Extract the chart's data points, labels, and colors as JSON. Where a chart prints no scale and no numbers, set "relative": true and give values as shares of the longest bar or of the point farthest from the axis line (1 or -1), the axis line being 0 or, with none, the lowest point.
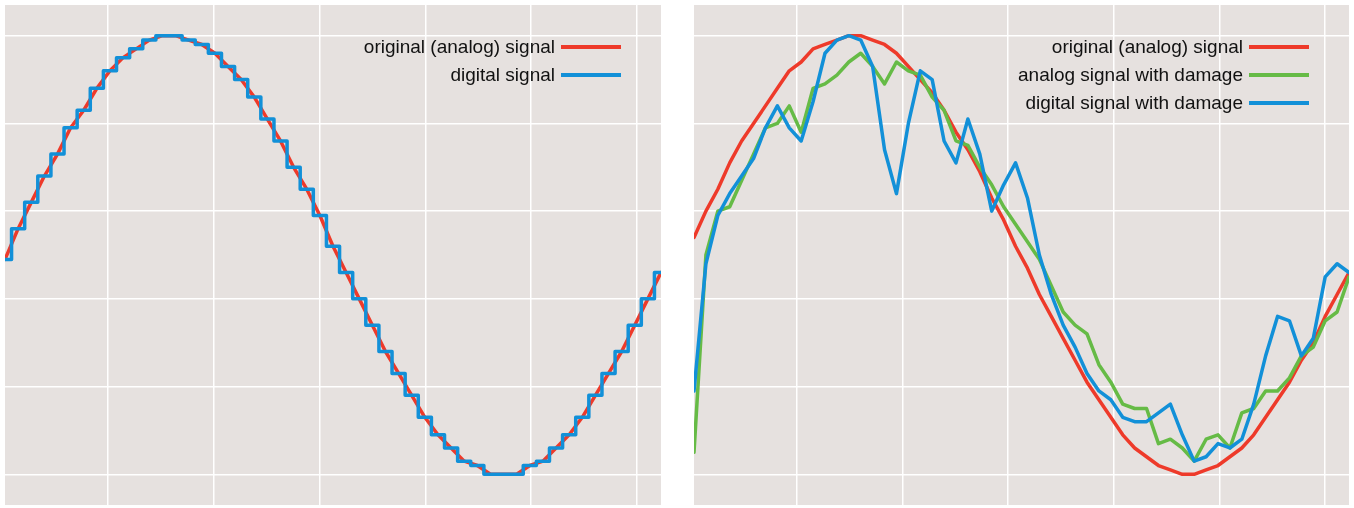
{
  "chart_data": [
    {
      "type": "line",
      "relative": true,
      "grid": true,
      "legend": "top right",
      "categories": [
        null,
        null,
        null,
        null,
        null,
        null,
        null,
        null,
        null,
        null,
        null,
        null,
        null,
        null,
        null,
        null,
        null,
        null,
        null,
        null,
        null,
        null,
        null,
        null,
        null,
        null,
        null,
        null,
        null,
        null,
        null,
        null,
        null,
        null,
        null,
        null,
        null,
        null,
        null,
        null,
        null,
        null,
        null,
        null,
        null,
        null,
        null,
        null,
        null,
        null,
        null
      ],
      "series": [
        {
          "name": "original (analog) signal",
          "color": "#ee3a2a",
          "values": [
            0.49,
            0.56,
            0.62,
            0.68,
            0.73,
            0.79,
            0.83,
            0.88,
            0.92,
            0.95,
            0.97,
            0.99,
            1.0,
            1.0,
            0.99,
            0.98,
            0.96,
            0.93,
            0.9,
            0.86,
            0.81,
            0.76,
            0.7,
            0.65,
            0.59,
            0.52,
            0.46,
            0.4,
            0.34,
            0.28,
            0.23,
            0.18,
            0.13,
            0.09,
            0.06,
            0.03,
            0.02,
            0.0,
            0.0,
            0.0,
            0.02,
            0.03,
            0.06,
            0.09,
            0.13,
            0.18,
            0.23,
            0.28,
            0.34,
            0.4,
            0.46
          ]
        },
        {
          "name": "digital signal",
          "type": "step",
          "color": "#1290d8",
          "values": [
            0.49,
            0.56,
            0.62,
            0.68,
            0.73,
            0.79,
            0.83,
            0.88,
            0.92,
            0.95,
            0.97,
            0.99,
            1.0,
            1.0,
            0.99,
            0.98,
            0.96,
            0.93,
            0.9,
            0.86,
            0.81,
            0.76,
            0.7,
            0.65,
            0.59,
            0.52,
            0.46,
            0.4,
            0.34,
            0.28,
            0.23,
            0.18,
            0.13,
            0.09,
            0.06,
            0.03,
            0.02,
            0.0,
            0.0,
            0.0,
            0.02,
            0.03,
            0.06,
            0.09,
            0.13,
            0.18,
            0.23,
            0.28,
            0.34,
            0.4,
            0.46
          ]
        }
      ]
    },
    {
      "type": "line",
      "relative": true,
      "grid": true,
      "legend": "top right",
      "categories": [
        null,
        null,
        null,
        null,
        null,
        null,
        null,
        null,
        null,
        null,
        null,
        null,
        null,
        null,
        null,
        null,
        null,
        null,
        null,
        null,
        null,
        null,
        null,
        null,
        null,
        null,
        null,
        null,
        null,
        null,
        null,
        null,
        null,
        null,
        null,
        null,
        null,
        null,
        null,
        null,
        null,
        null,
        null,
        null,
        null,
        null,
        null,
        null,
        null,
        null,
        null,
        null,
        null,
        null,
        null,
        null
      ],
      "series": [
        {
          "name": "original (analog) signal",
          "color": "#ee3a2a",
          "values": [
            0.54,
            0.6,
            0.65,
            0.71,
            0.76,
            0.8,
            0.84,
            0.88,
            0.92,
            0.94,
            0.97,
            0.98,
            0.99,
            1.0,
            1.0,
            0.99,
            0.98,
            0.96,
            0.93,
            0.9,
            0.87,
            0.83,
            0.78,
            0.74,
            0.69,
            0.63,
            0.58,
            0.52,
            0.47,
            0.41,
            0.36,
            0.31,
            0.26,
            0.21,
            0.17,
            0.13,
            0.09,
            0.06,
            0.04,
            0.02,
            0.01,
            0.0,
            0.0,
            0.01,
            0.02,
            0.04,
            0.06,
            0.09,
            0.13,
            0.17,
            0.21,
            0.26,
            0.3,
            0.36,
            0.41,
            0.46
          ]
        },
        {
          "name": "analog signal with damage",
          "color": "#66bb46",
          "values": [
            0.05,
            0.5,
            0.6,
            0.61,
            0.67,
            0.73,
            0.79,
            0.8,
            0.84,
            0.78,
            0.88,
            0.89,
            0.91,
            0.94,
            0.96,
            0.93,
            0.89,
            0.94,
            0.92,
            0.91,
            0.86,
            0.83,
            0.76,
            0.75,
            0.7,
            0.66,
            0.61,
            0.57,
            0.53,
            0.49,
            0.43,
            0.37,
            0.34,
            0.32,
            0.25,
            0.21,
            0.16,
            0.15,
            0.15,
            0.07,
            0.08,
            0.06,
            0.03,
            0.08,
            0.09,
            0.06,
            0.14,
            0.15,
            0.19,
            0.19,
            0.22,
            0.27,
            0.29,
            0.35,
            0.37,
            0.45
          ]
        },
        {
          "name": "digital signal with damage",
          "color": "#1290d8",
          "values": [
            0.19,
            0.48,
            0.59,
            0.64,
            0.68,
            0.72,
            0.79,
            0.84,
            0.79,
            0.76,
            0.85,
            0.96,
            0.99,
            1.0,
            0.99,
            0.93,
            0.74,
            0.64,
            0.8,
            0.92,
            0.9,
            0.76,
            0.71,
            0.81,
            0.73,
            0.6,
            0.66,
            0.71,
            0.63,
            0.5,
            0.41,
            0.34,
            0.29,
            0.23,
            0.19,
            0.17,
            0.13,
            0.12,
            0.12,
            0.14,
            0.16,
            0.09,
            0.03,
            0.04,
            0.07,
            0.06,
            0.08,
            0.16,
            0.27,
            0.36,
            0.35,
            0.27,
            0.31,
            0.45,
            0.48,
            0.46
          ]
        }
      ]
    }
  ]
}
